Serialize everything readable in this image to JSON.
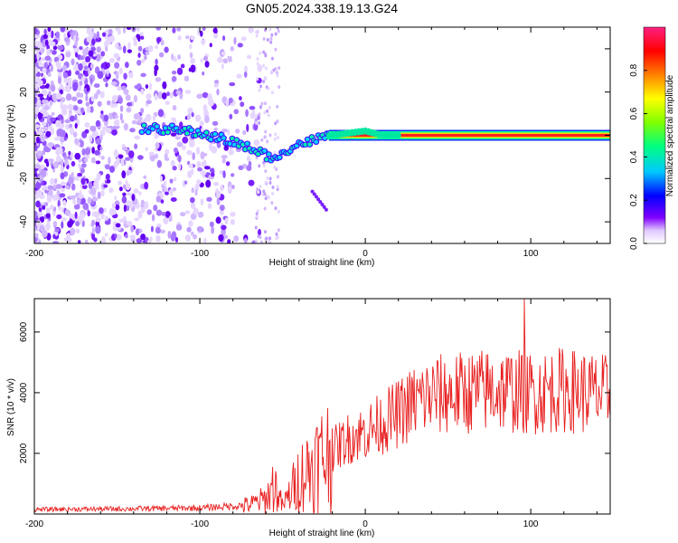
{
  "title": "GN05.2024.338.19.13.G24",
  "chart_data": [
    {
      "type": "heatmap",
      "title": "GN05.2024.338.19.13.G24",
      "xlabel": "Height of straight line (km)",
      "ylabel": "Frequency (Hz)",
      "xlim": [
        -200,
        148
      ],
      "ylim": [
        -50,
        50
      ],
      "x_ticks": [
        "-200",
        "-100",
        "0",
        "100"
      ],
      "y_ticks": [
        "-40",
        "-20",
        "0",
        "20",
        "40"
      ],
      "colorbar": {
        "label": "Normalized spectral amplitude",
        "range": [
          0,
          1
        ],
        "ticks": [
          "0.0",
          "0.2",
          "0.4",
          "0.6",
          "0.8"
        ],
        "colors": [
          "#ffffff",
          "#8000ff",
          "#0000ff",
          "#00c8ff",
          "#00ff80",
          "#80ff00",
          "#ffff00",
          "#ff8000",
          "#ff0000",
          "#ff0080"
        ]
      },
      "ridge": {
        "x": [
          -130,
          -120,
          -110,
          -100,
          -90,
          -80,
          -70,
          -60,
          -55,
          -50,
          -45,
          -40,
          -30,
          -20,
          -10,
          0,
          10,
          20,
          50,
          100,
          148
        ],
        "y": [
          3,
          3,
          2,
          1,
          -1,
          -3,
          -6,
          -9,
          -12,
          -7,
          -6,
          -4,
          -2,
          0,
          1,
          2,
          0,
          0,
          0,
          0,
          0
        ]
      }
    },
    {
      "type": "line",
      "xlabel": "Height of straight line (km)",
      "ylabel": "SNR (10 * v/v)",
      "xlim": [
        -200,
        148
      ],
      "ylim": [
        0,
        7100
      ],
      "x_ticks": [
        "-200",
        "-100",
        "0",
        "100"
      ],
      "y_ticks": [
        "2000",
        "4000",
        "6000"
      ],
      "color": "#e82020",
      "envelope": {
        "x": [
          -200,
          -150,
          -100,
          -80,
          -70,
          -60,
          -55,
          -50,
          -40,
          -30,
          -20,
          -10,
          0,
          10,
          20,
          30,
          40,
          60,
          80,
          100,
          120,
          148
        ],
        "y": [
          150,
          170,
          200,
          260,
          300,
          500,
          1000,
          250,
          1200,
          1700,
          2100,
          2500,
          2700,
          3000,
          3300,
          3700,
          3900,
          4000,
          4100,
          4000,
          4100,
          3900
        ]
      },
      "peak": {
        "x": 96,
        "y": 7100
      }
    }
  ]
}
